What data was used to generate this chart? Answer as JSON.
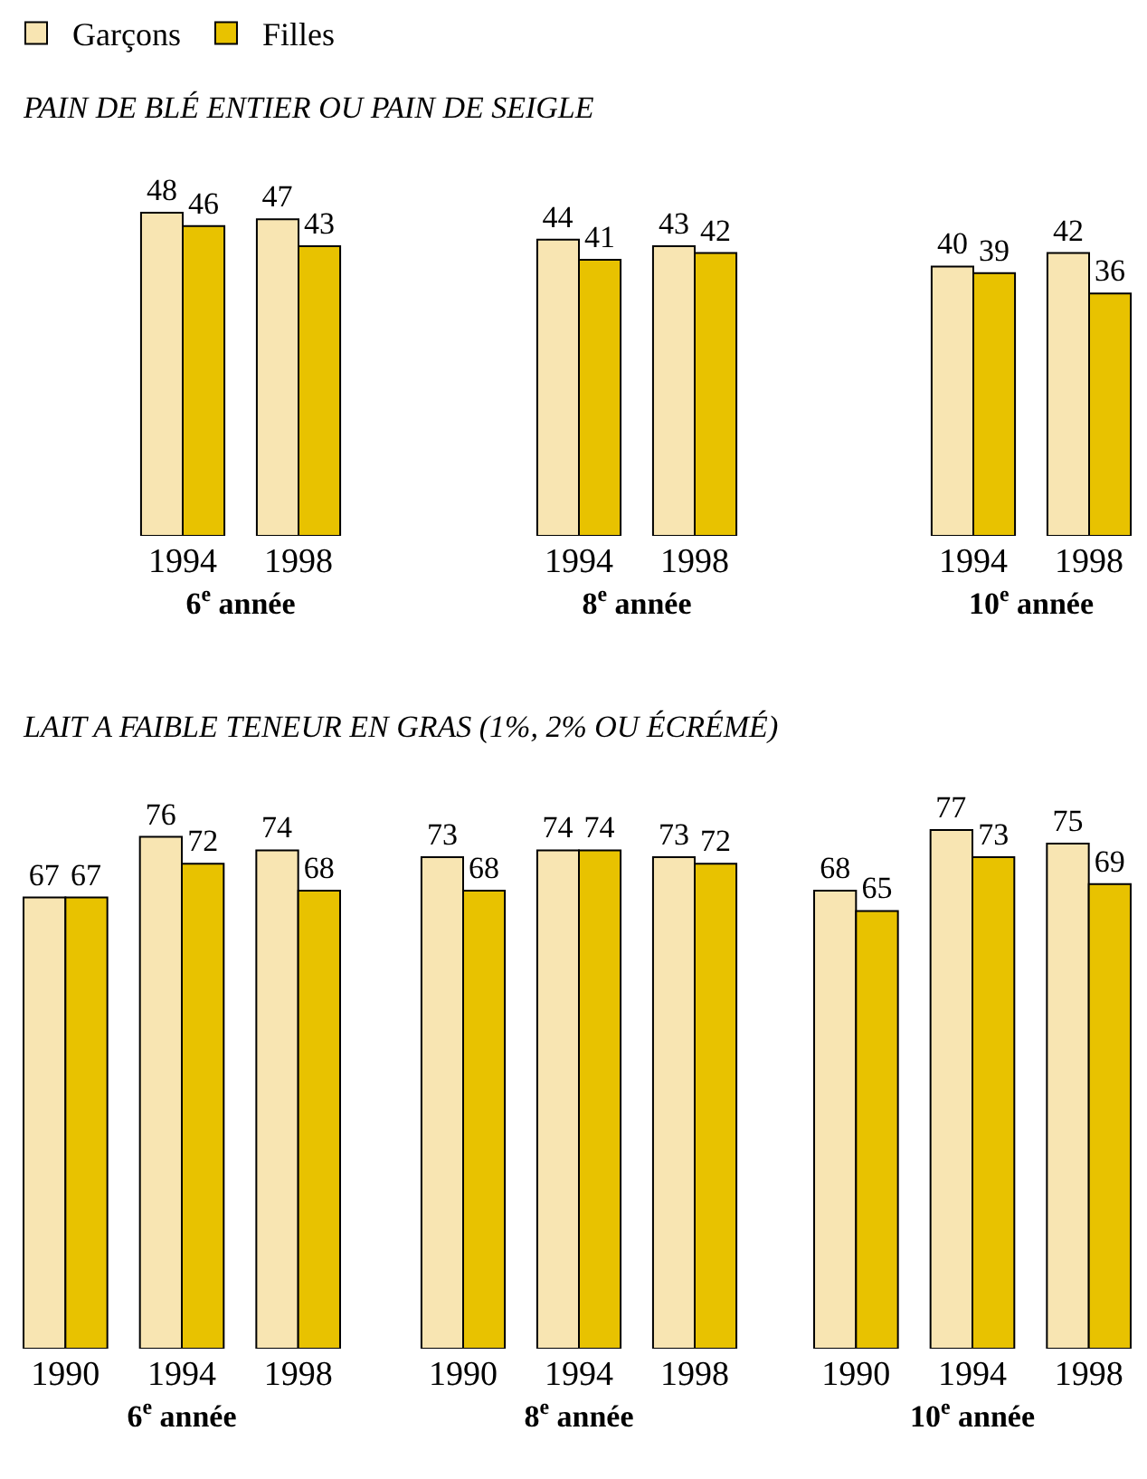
{
  "chart_data": [
    {
      "type": "bar",
      "title": "PAIN DE BLÉ ENTIER OU PAIN DE SEIGLE",
      "xlabel": "6$^{e}$ année",
      "categories": [
        "1994",
        "1998"
      ],
      "legend": "top left",
      "data_labels": true,
      "tick_labels": "x",
      "series": [
        {
          "name": "Garçons",
          "color": "#f8e5b2",
          "values": [
            48,
            47
          ]
        },
        {
          "name": "Filles",
          "color": "#e8c200",
          "values": [
            46,
            43
          ]
        }
      ]
    },
    {
      "type": "bar",
      "xlabel": "8$^{e}$ année",
      "categories": [
        "1994",
        "1998"
      ],
      "data_labels": true,
      "tick_labels": "x",
      "series": [
        {
          "color": "#f8e5b2",
          "values": [
            44,
            43
          ]
        },
        {
          "color": "#e8c200",
          "values": [
            41,
            42
          ]
        }
      ]
    },
    {
      "type": "bar",
      "xlabel": "10$^{e}$ année",
      "categories": [
        "1994",
        "1998"
      ],
      "data_labels": true,
      "tick_labels": "x",
      "series": [
        {
          "color": "#f8e5b2",
          "values": [
            40,
            42
          ]
        },
        {
          "color": "#e8c200",
          "values": [
            39,
            36
          ]
        }
      ]
    },
    {
      "type": "bar",
      "title": "LAIT A FAIBLE TENEUR EN GRAS (1%, 2% OU ÉCRÉMÉ)",
      "xlabel": "6$^{e}$ année",
      "categories": [
        "1990",
        "1994",
        "1998"
      ],
      "data_labels": true,
      "tick_labels": "x",
      "series": [
        {
          "color": "#f8e5b2",
          "values": [
            67,
            76,
            74
          ]
        },
        {
          "color": "#e8c200",
          "values": [
            67,
            72,
            68
          ]
        }
      ]
    },
    {
      "type": "bar",
      "xlabel": "8$^{e}$ année",
      "categories": [
        "1990",
        "1994",
        "1998"
      ],
      "data_labels": true,
      "tick_labels": "x",
      "series": [
        {
          "color": "#f8e5b2",
          "values": [
            73,
            74,
            73
          ]
        },
        {
          "color": "#e8c200",
          "values": [
            68,
            74,
            72
          ]
        }
      ]
    },
    {
      "type": "bar",
      "xlabel": "10$^{e}$ année",
      "categories": [
        "1990",
        "1994",
        "1998"
      ],
      "data_labels": true,
      "tick_labels": "x",
      "series": [
        {
          "color": "#f8e5b2",
          "values": [
            68,
            77,
            75
          ]
        },
        {
          "color": "#e8c200",
          "values": [
            65,
            73,
            69
          ]
        }
      ]
    }
  ]
}
